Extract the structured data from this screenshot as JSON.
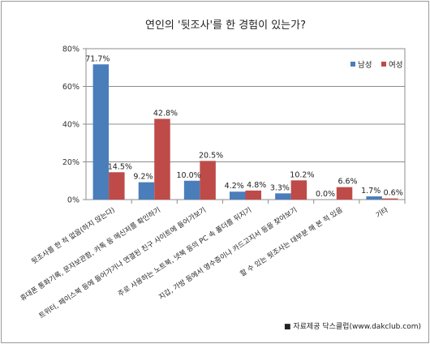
{
  "chart_data": {
    "type": "bar",
    "title": "연인의 '뒷조사'를 한 경험이 있는가?",
    "categories": [
      "뒷조사를 한 적 없음(하지 않는다)",
      "휴대폰 통화기록, 문자보관함, 카톡 등 메신저를 확인하기",
      "트위터, 페이스북 등에 들어가거나 연결된 친구 사이트에 들어가보기",
      "주로 사용하는 노트북, 넷북 등의 PC 속 폴더를 뒤지기",
      "지갑, 가방 등에서 영수증이나 카드고지서 등을 찾아보기",
      "할 수 있는 뒷조사는 대부분 해 본 적 있음",
      "기타"
    ],
    "series": [
      {
        "name": "남성",
        "color": "#4a7ebb",
        "values": [
          71.7,
          9.2,
          10.0,
          4.2,
          3.3,
          0.0,
          1.7
        ]
      },
      {
        "name": "여성",
        "color": "#be4b48",
        "values": [
          14.5,
          42.8,
          20.5,
          4.8,
          10.2,
          6.6,
          0.6
        ]
      }
    ],
    "yticks": [
      "0%",
      "20%",
      "40%",
      "60%",
      "80%"
    ],
    "ylim": [
      0,
      80
    ],
    "grid": true,
    "legend": "top-right",
    "value_suffix": "%"
  },
  "source_note": "■ 자료제공 닥스클럽(www.dakclub.com)"
}
